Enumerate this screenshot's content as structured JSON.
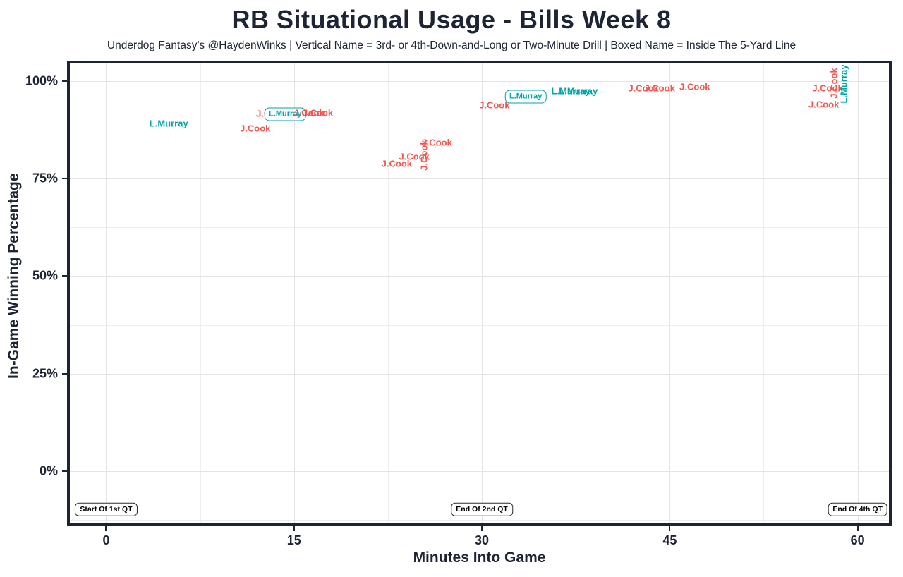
{
  "chart_data": {
    "type": "scatter",
    "title": "RB Situational Usage - Bills Week 8",
    "subtitle": "Underdog Fantasy's @HaydenWinks | Vertical Name = 3rd- or 4th-Down-and-Long or Two-Minute Drill | Boxed Name = Inside The 5-Yard Line",
    "xlabel": "Minutes Into Game",
    "ylabel": "In-Game Winning Percentage",
    "xlim": [
      -2.9,
      62.5
    ],
    "ylim": [
      -13.4,
      104.5
    ],
    "grid": "on",
    "legend_position": "none",
    "x_ticks": [
      {
        "v": 0,
        "label": "0"
      },
      {
        "v": 15,
        "label": "15"
      },
      {
        "v": 30,
        "label": "30"
      },
      {
        "v": 45,
        "label": "45"
      },
      {
        "v": 60,
        "label": "60"
      }
    ],
    "y_ticks": [
      {
        "v": 100,
        "label": "100%"
      },
      {
        "v": 75,
        "label": "75%"
      },
      {
        "v": 50,
        "label": "50%"
      },
      {
        "v": 25,
        "label": "25%"
      },
      {
        "v": 0,
        "label": "0%"
      }
    ],
    "x_minor_gridlines": [
      7.5,
      22.5,
      37.5,
      52.5
    ],
    "y_minor_gridlines": [
      -12.5,
      12.5,
      37.5,
      62.5,
      87.5
    ],
    "series": [
      {
        "name": "J.Cook",
        "color": "#f4564e"
      },
      {
        "name": "L.Murray",
        "color": "#00a6a8"
      }
    ],
    "style_legend": {
      "vertical": "3rd- or 4th-Down-and-Long or Two-Minute Drill",
      "boxed": "Inside The 5-Yard Line"
    },
    "points": [
      {
        "player": "L.Murray",
        "x": 5.0,
        "y": 89.2,
        "style": "normal"
      },
      {
        "player": "J.Cook",
        "x": 11.9,
        "y": 87.9,
        "style": "normal"
      },
      {
        "player": "J.Cook",
        "x": 13.2,
        "y": 91.6,
        "style": "normal"
      },
      {
        "player": "L.Murray",
        "x": 14.3,
        "y": 91.5,
        "style": "boxed"
      },
      {
        "player": "J.Cook",
        "x": 16.2,
        "y": 91.9,
        "style": "normal"
      },
      {
        "player": "J.Cook",
        "x": 16.9,
        "y": 91.9,
        "style": "normal"
      },
      {
        "player": "J.Cook",
        "x": 23.2,
        "y": 78.8,
        "style": "normal"
      },
      {
        "player": "J.Cook",
        "x": 24.6,
        "y": 80.7,
        "style": "normal"
      },
      {
        "player": "J.Cook",
        "x": 25.4,
        "y": 81.0,
        "style": "vertical"
      },
      {
        "player": "J.Cook",
        "x": 26.4,
        "y": 84.3,
        "style": "normal"
      },
      {
        "player": "J.Cook",
        "x": 31.0,
        "y": 93.9,
        "style": "normal"
      },
      {
        "player": "L.Murray",
        "x": 33.5,
        "y": 96.0,
        "style": "boxed"
      },
      {
        "player": "L.Murray",
        "x": 37.1,
        "y": 97.4,
        "style": "normal"
      },
      {
        "player": "L.Murray",
        "x": 37.7,
        "y": 97.4,
        "style": "normal"
      },
      {
        "player": "J.Cook",
        "x": 42.9,
        "y": 98.2,
        "style": "normal"
      },
      {
        "player": "J.Cook",
        "x": 44.2,
        "y": 98.2,
        "style": "normal"
      },
      {
        "player": "J.Cook",
        "x": 47.0,
        "y": 98.6,
        "style": "normal"
      },
      {
        "player": "J.Cook",
        "x": 57.3,
        "y": 94.0,
        "style": "normal"
      },
      {
        "player": "J.Cook",
        "x": 57.6,
        "y": 98.2,
        "style": "normal"
      },
      {
        "player": "J.Cook",
        "x": 58.1,
        "y": 99.5,
        "style": "vertical"
      },
      {
        "player": "L.Murray",
        "x": 58.9,
        "y": 99.3,
        "style": "vertical"
      }
    ],
    "annotations": [
      {
        "label": "Start Of 1st QT",
        "x": 0,
        "y": -9.8
      },
      {
        "label": "End Of 2nd QT",
        "x": 30,
        "y": -9.8
      },
      {
        "label": "End Of 4th QT",
        "x": 60,
        "y": -9.8
      }
    ]
  },
  "colors": {
    "axis_text": "#1d2434",
    "plot_border": "#1d2434",
    "grid_major": "#e3e3e8",
    "grid_minor": "#eeeef1",
    "background": "#ffffff"
  }
}
